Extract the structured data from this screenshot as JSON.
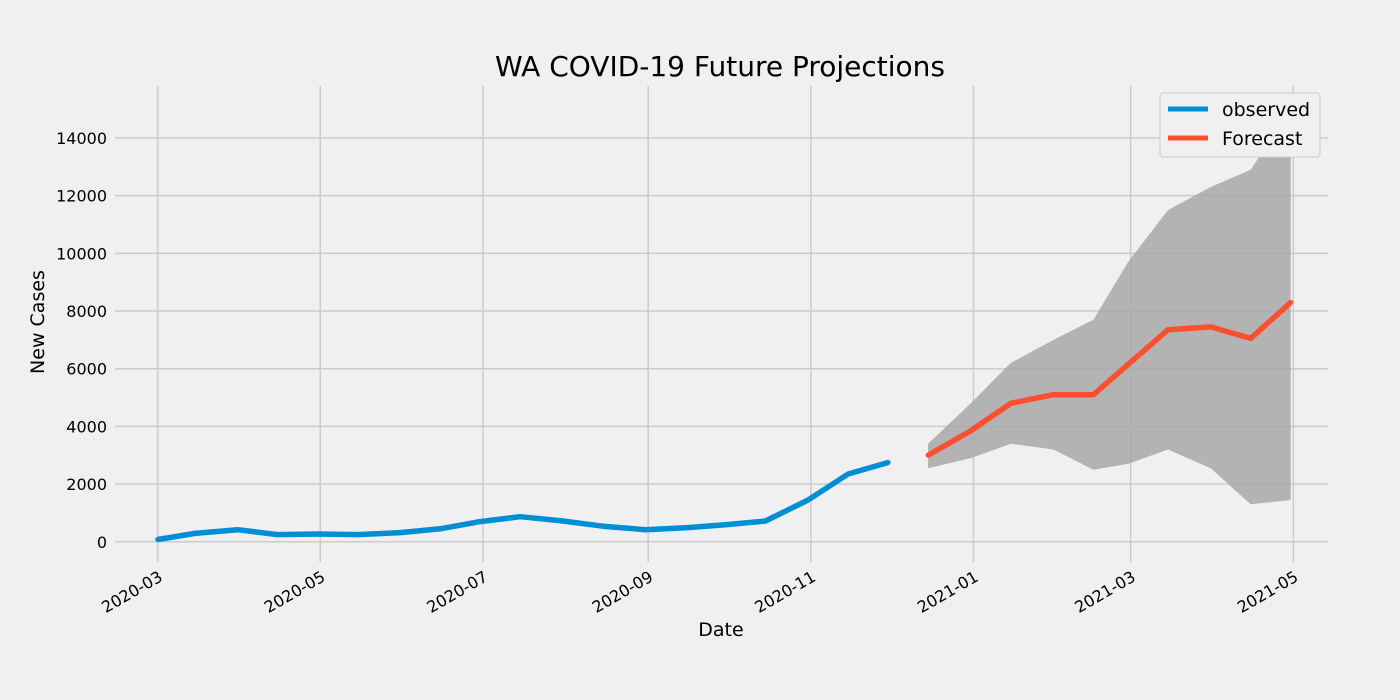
{
  "chart_data": {
    "type": "line",
    "title": "WA COVID-19 Future Projections",
    "xlabel": "Date",
    "ylabel": "New Cases",
    "xlim": [
      "2020-02-14",
      "2021-05-14"
    ],
    "ylim": [
      -700,
      15800
    ],
    "grid": true,
    "legend": "top-right",
    "x_ticks": [
      "2020-03",
      "2020-05",
      "2020-07",
      "2020-09",
      "2020-11",
      "2021-01",
      "2021-03",
      "2021-05"
    ],
    "y_ticks": [
      "0",
      "2000",
      "4000",
      "6000",
      "8000",
      "10000",
      "12000",
      "14000"
    ],
    "series": [
      {
        "name": "observed",
        "color": "#008fd5",
        "x": [
          "2020-03-01",
          "2020-03-15",
          "2020-03-31",
          "2020-04-15",
          "2020-04-30",
          "2020-05-15",
          "2020-05-31",
          "2020-06-15",
          "2020-06-30",
          "2020-07-15",
          "2020-07-31",
          "2020-08-15",
          "2020-08-31",
          "2020-09-15",
          "2020-09-30",
          "2020-10-15",
          "2020-10-31",
          "2020-11-15",
          "2020-11-30"
        ],
        "values": [
          80,
          290,
          420,
          250,
          270,
          250,
          320,
          450,
          700,
          870,
          720,
          540,
          420,
          490,
          590,
          720,
          1450,
          2350,
          2750
        ]
      },
      {
        "name": "Forecast",
        "color": "#fc4f30",
        "x": [
          "2020-12-15",
          "2020-12-31",
          "2021-01-15",
          "2021-01-31",
          "2021-02-15",
          "2021-02-28",
          "2021-03-15",
          "2021-03-31",
          "2021-04-15",
          "2021-04-30"
        ],
        "values": [
          3000,
          3850,
          4800,
          5100,
          5100,
          6150,
          7350,
          7450,
          7050,
          8300
        ],
        "ci_lower": [
          2550,
          2900,
          3400,
          3200,
          2500,
          2700,
          3200,
          2550,
          1300,
          1450
        ],
        "ci_upper": [
          3400,
          4800,
          6200,
          7000,
          7700,
          9700,
          11500,
          12300,
          12900,
          15000
        ],
        "ci_color": "#a8a8a8"
      }
    ]
  }
}
